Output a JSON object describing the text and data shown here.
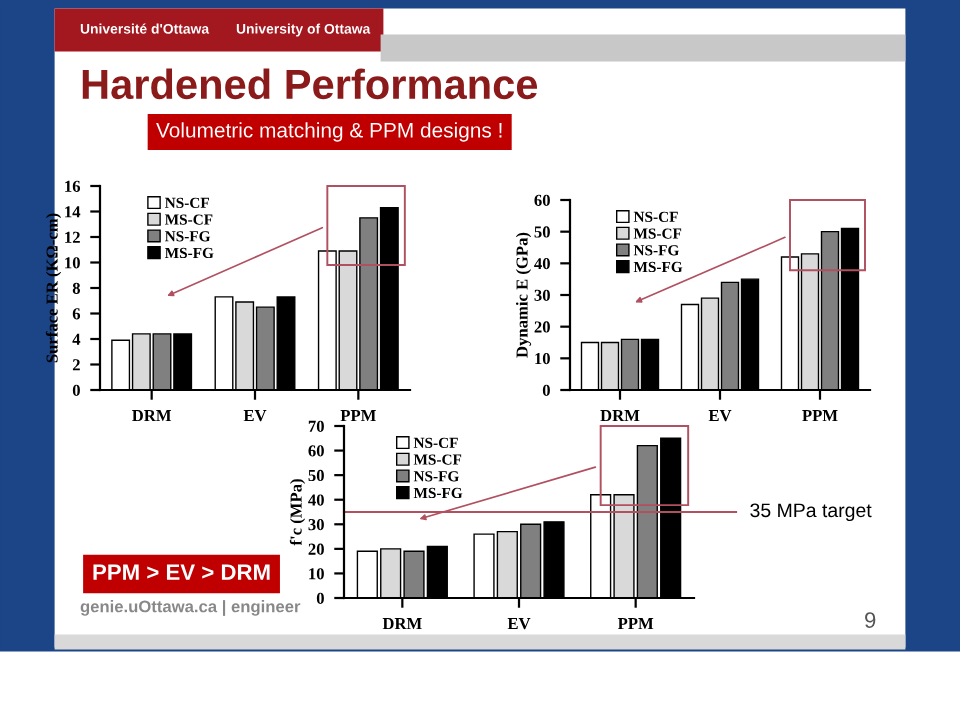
{
  "chart_data": [
    {
      "type": "bar",
      "ylabel": "Surface ER (KΩ-cm)",
      "categories": [
        "DRM",
        "EV",
        "PPM"
      ],
      "annotations": [
        "Université d'Ottawa",
        "University of Ottawa",
        "Hardened Performance",
        "Volumetric matching & PPM designs !",
        "PPM > EV > DRM",
        "genie.uOttawa.ca | engineer",
        "9"
      ],
      "series": [
        {
          "name": "NS-CF",
          "color": "#ffffff",
          "values": [
            3.9,
            7.3,
            10.9
          ]
        },
        {
          "name": "MS-CF",
          "color": "#d9d9d9",
          "values": [
            4.4,
            6.9,
            10.9
          ]
        },
        {
          "name": "NS-FG",
          "color": "#808080",
          "values": [
            4.4,
            6.5,
            13.5
          ]
        },
        {
          "name": "MS-FG",
          "color": "#000000",
          "values": [
            4.4,
            7.3,
            14.3
          ]
        }
      ],
      "ylim": [
        0,
        16
      ],
      "yticks": [
        0,
        2,
        4,
        6,
        8,
        10,
        12,
        14,
        16
      ],
      "legend": "top left",
      "grid": false
    },
    {
      "type": "bar",
      "ylabel": "Dynamic E (GPa)",
      "categories": [
        "DRM",
        "EV",
        "PPM"
      ],
      "series": [
        {
          "name": "NS-CF",
          "color": "#ffffff",
          "values": [
            15,
            27,
            42
          ]
        },
        {
          "name": "MS-CF",
          "color": "#d9d9d9",
          "values": [
            15,
            29,
            43
          ]
        },
        {
          "name": "NS-FG",
          "color": "#808080",
          "values": [
            16,
            34,
            50
          ]
        },
        {
          "name": "MS-FG",
          "color": "#000000",
          "values": [
            16,
            35,
            51
          ]
        }
      ],
      "ylim": [
        0,
        60
      ],
      "yticks": [
        0,
        10,
        20,
        30,
        40,
        50,
        60
      ],
      "legend": "top left",
      "grid": false
    },
    {
      "type": "bar",
      "ylabel": "f'c (MPa)",
      "categories": [
        "DRM",
        "EV",
        "PPM"
      ],
      "series": [
        {
          "name": "NS-CF",
          "color": "#ffffff",
          "values": [
            19,
            26,
            42
          ]
        },
        {
          "name": "MS-CF",
          "color": "#d9d9d9",
          "values": [
            20,
            27,
            42
          ]
        },
        {
          "name": "NS-FG",
          "color": "#808080",
          "values": [
            19,
            30,
            62
          ]
        },
        {
          "name": "MS-FG",
          "color": "#000000",
          "values": [
            21,
            31,
            65
          ]
        }
      ],
      "ylim": [
        0,
        70
      ],
      "yticks": [
        0,
        10,
        20,
        30,
        40,
        50,
        60,
        70
      ],
      "legend": "top left",
      "grid": false,
      "ref_lines": [
        {
          "axis": "y",
          "value": 35,
          "label": "35 MPa target",
          "color": "#b05060"
        }
      ]
    }
  ]
}
